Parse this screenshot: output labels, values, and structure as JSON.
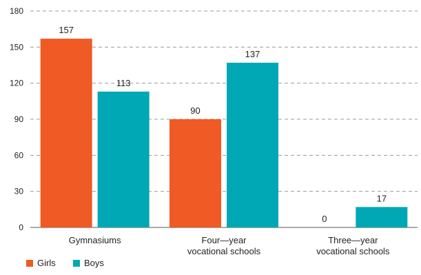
{
  "chart_data": {
    "type": "bar",
    "title": "",
    "xlabel": "",
    "ylabel": "",
    "categories": [
      [
        "Gymnasiums"
      ],
      [
        "Four—year",
        "vocational schools"
      ],
      [
        "Three—year",
        "vocational schools"
      ]
    ],
    "series": [
      {
        "name": "Girls",
        "color": "#f05a24",
        "values": [
          157,
          90,
          0
        ]
      },
      {
        "name": "Boys",
        "color": "#00a8b5",
        "values": [
          113,
          137,
          17
        ]
      }
    ],
    "ylim": [
      0,
      180
    ],
    "yticks": [
      0,
      30,
      60,
      90,
      120,
      150,
      180
    ],
    "grid": true,
    "legend_position": "bottom-left",
    "data_labels": true
  }
}
